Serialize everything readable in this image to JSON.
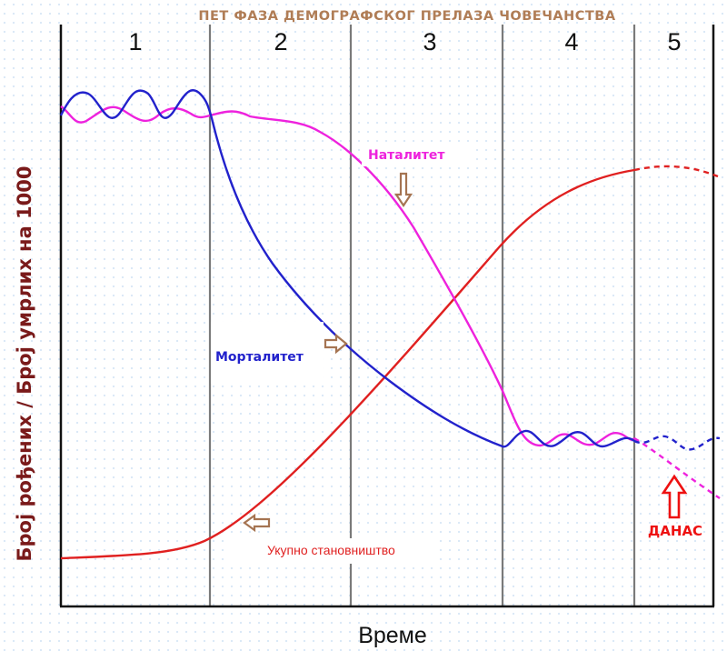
{
  "title": "ПЕТ  ФАЗА  ДЕМОГРАФСКОГ  ПРЕЛАЗА  ЧОВЕЧАНСТВА",
  "stages": [
    "1",
    "2",
    "3",
    "4",
    "5"
  ],
  "y_axis_label": "Број рођених / Број умрлих на 1000",
  "x_axis_label": "Време",
  "labels": {
    "natality": "Наталитет",
    "mortality": "Морталитет",
    "population": "Укупно становништво",
    "today": "ДАНАС"
  },
  "colors": {
    "title": "#b07d56",
    "axis_label": "#7a1a1a",
    "natality": "#ee22dd",
    "mortality": "#2222cc",
    "population": "#e02020",
    "pointer_arrow": "#a57452",
    "today": "#ee1111",
    "divider": "#7a7a7a",
    "frame": "#111111"
  }
}
